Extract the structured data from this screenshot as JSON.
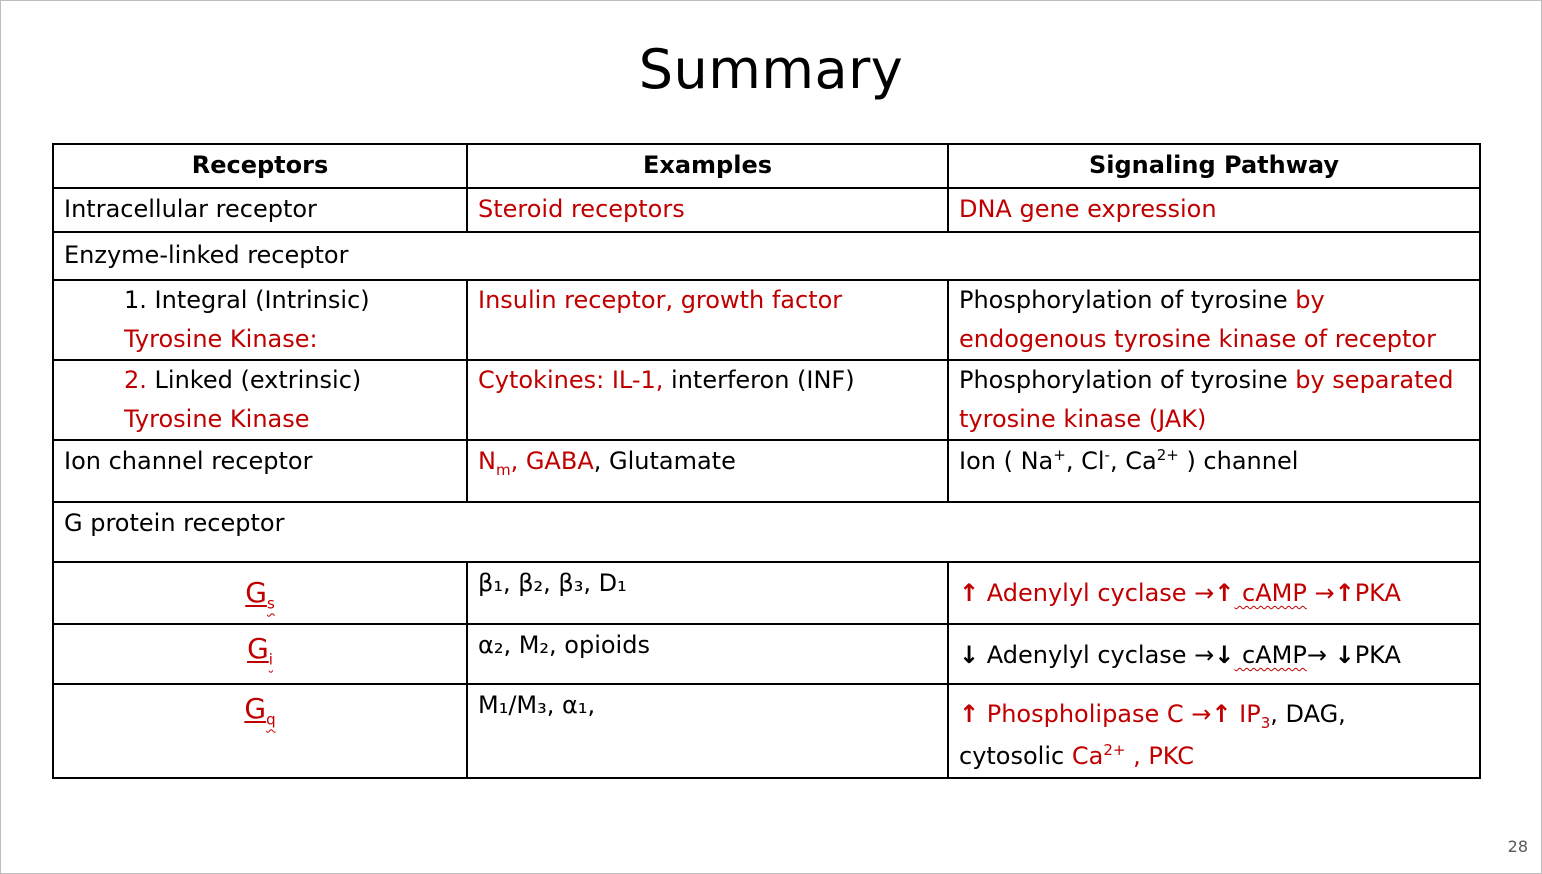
{
  "title": "Summary",
  "page_number": "28",
  "headers": {
    "receptors": "Receptors",
    "examples": "Examples",
    "pathway": "Signaling Pathway"
  },
  "rows": {
    "intracellular": {
      "receptor": "Intracellular receptor",
      "example": "Steroid receptors",
      "pathway": "DNA gene expression"
    },
    "enzyme": {
      "receptor": "Enzyme-linked receptor"
    },
    "integral": {
      "receptor_a": "1. Integral (Intrinsic)",
      "receptor_b": "Tyrosine Kinase:",
      "example": "Insulin receptor, growth factor",
      "pathway_a": "Phosphorylation of tyrosine ",
      "pathway_b": "by endogenous tyrosine kinase of receptor"
    },
    "linked": {
      "num": "2.",
      "receptor_a": " Linked (extrinsic) ",
      "receptor_b": "Tyrosine Kinase",
      "example_a": "Cytokines: IL-1,",
      "example_b": " interferon (INF)",
      "pathway_a": "Phosphorylation of tyrosine ",
      "pathway_b": "by separated tyrosine kinase (JAK)"
    },
    "ion": {
      "receptor": "Ion channel receptor",
      "ex_n": "N",
      "ex_m": "m",
      "ex_gaba": ", GABA",
      "ex_glu": ", Glutamate",
      "pw_a": "Ion ( Na",
      "pw_plus": "+",
      "pw_b": ", Cl",
      "pw_minus": "-",
      "pw_c": ", Ca",
      "pw_2plus": "2+",
      "pw_d": " ) channel"
    },
    "gprotein": {
      "receptor": "G protein receptor"
    },
    "gs": {
      "g": "G",
      "sub": "s",
      "ex": "β₁, β₂, β₃, D₁",
      "up": "↑",
      "p1": " Adenylyl cyclase →",
      "p2": " cAMP",
      "p3": " →",
      "p4": "PKA"
    },
    "gi": {
      "g": "G",
      "sub": "i",
      "ex": "α₂, M₂, opioids",
      "down": "↓",
      "p1": " Adenylyl cyclase →",
      "p2": " cAMP",
      "p3": "→ ",
      "p4": "PKA"
    },
    "gq": {
      "g": "G",
      "sub": "q",
      "ex": "M₁/M₃, α₁,",
      "up": "↑",
      "p1": " Phospholipase C →",
      "p2": " IP",
      "p2sub": "3",
      "p3": ", DAG,",
      "p4": "cytosolic ",
      "p5": "Ca",
      "p5sup": "2+",
      "p6": " , PKC"
    }
  }
}
